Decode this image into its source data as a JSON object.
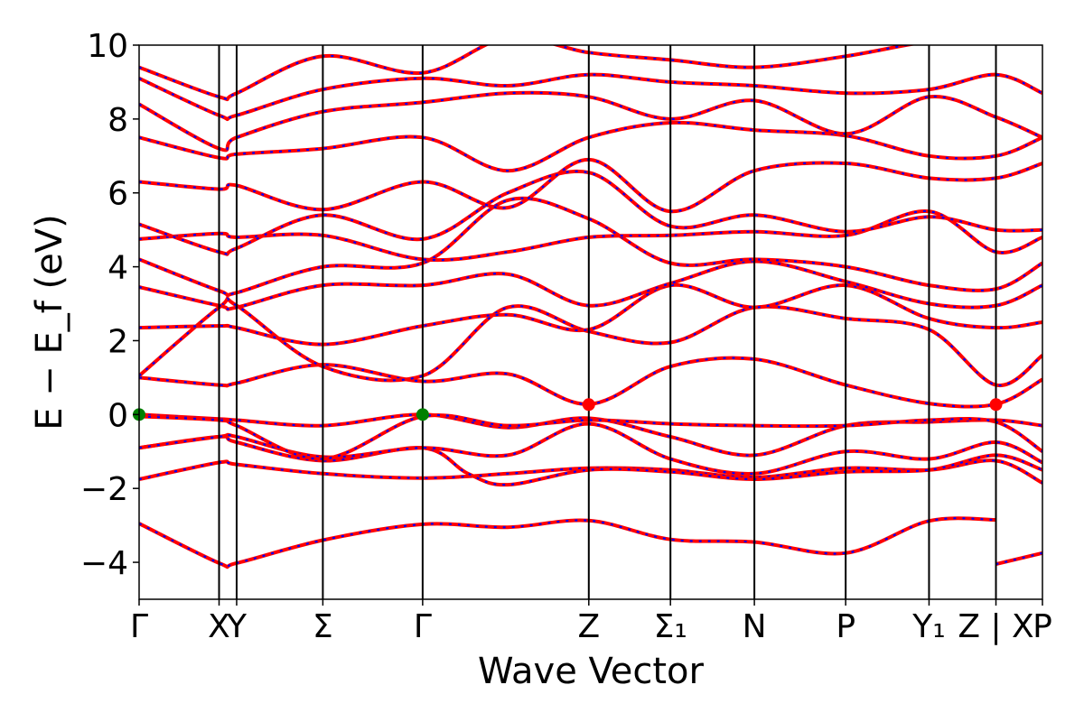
{
  "chart_data": {
    "type": "line",
    "xlabel": "Wave Vector",
    "ylabel": "E − E_f (eV)",
    "ylim": [
      -5,
      10
    ],
    "yticks": [
      -4,
      -2,
      0,
      2,
      4,
      6,
      8,
      10
    ],
    "grid": false,
    "kpoint_labels": [
      {
        "label": "Γ",
        "k": 0.0
      },
      {
        "label": "X",
        "k": 0.141
      },
      {
        "label": "Y",
        "k": 0.172
      },
      {
        "label": "Σ",
        "k": 0.324
      },
      {
        "label": "Γ",
        "k": 0.5
      },
      {
        "label": "Z",
        "k": 0.793
      },
      {
        "label": "Σ₁",
        "k": 0.937
      },
      {
        "label": "N",
        "k": 1.085
      },
      {
        "label": "P",
        "k": 1.246
      },
      {
        "label": "Y₁",
        "k": 1.393
      },
      {
        "label": "Z | X",
        "k": 1.511
      },
      {
        "label": "P",
        "k": 1.593
      }
    ],
    "xlim": [
      0,
      1.593
    ],
    "band_colors": {
      "primary": "#ff0000",
      "overlay": "#0000ff"
    },
    "markers": [
      {
        "k": 0.0,
        "e": 0.0,
        "color": "#008000"
      },
      {
        "k": 0.5,
        "e": 0.0,
        "color": "#008000"
      },
      {
        "k": 0.793,
        "e": 0.27,
        "color": "#ff0000"
      },
      {
        "k": 1.511,
        "e": 0.27,
        "color": "#ff0000"
      }
    ],
    "bands": [
      {
        "name": "",
        "k": [
          0,
          0.141,
          0.172,
          0.324,
          0.5,
          0.65,
          0.793,
          0.937,
          1.085,
          1.246,
          1.393,
          1.511
        ],
        "e": [
          -2.95,
          -4.02,
          -4.02,
          -3.4,
          -2.97,
          -3.05,
          -2.87,
          -3.38,
          -3.45,
          -3.75,
          -2.88,
          -2.85
        ]
      },
      {
        "name": "",
        "k": [
          1.511,
          1.593
        ],
        "e": [
          -4.05,
          -3.75
        ]
      },
      {
        "name": "",
        "k": [
          0,
          0.141,
          0.172,
          0.324,
          0.5,
          0.65,
          0.793,
          0.937,
          1.085,
          1.246,
          1.393,
          1.511,
          1.593
        ],
        "e": [
          -1.75,
          -1.3,
          -1.35,
          -1.6,
          -1.72,
          -1.6,
          -1.45,
          -1.5,
          -1.7,
          -1.45,
          -1.5,
          -1.25,
          -1.85
        ]
      },
      {
        "name": "",
        "k": [
          0,
          0.141,
          0.172,
          0.324,
          0.5,
          0.58,
          0.65,
          0.793,
          0.937,
          1.085,
          1.246,
          1.393,
          1.511,
          1.593
        ],
        "e": [
          -0.9,
          -0.6,
          -0.75,
          -1.25,
          -0.9,
          -1.6,
          -1.9,
          -1.5,
          -1.55,
          -1.75,
          -1.55,
          -1.5,
          -1.1,
          -1.5
        ]
      },
      {
        "name": "",
        "k": [
          0,
          0.141,
          0.172,
          0.324,
          0.5,
          0.65,
          0.793,
          0.937,
          1.085,
          1.246,
          1.393,
          1.511,
          1.593
        ],
        "e": [
          -0.9,
          -0.6,
          -0.6,
          -1.15,
          -0.9,
          -1.1,
          -0.25,
          -1.2,
          -1.6,
          -1.0,
          -1.2,
          -0.75,
          -1.3
        ]
      },
      {
        "name": "",
        "k": [
          0,
          0.141,
          0.172,
          0.324,
          0.5,
          0.65,
          0.793,
          0.937,
          1.085,
          1.246,
          1.393,
          1.511,
          1.593
        ],
        "e": [
          0.0,
          -0.12,
          -0.15,
          -0.3,
          0.0,
          -0.35,
          -0.1,
          -0.6,
          -1.1,
          -0.3,
          -0.2,
          -0.15,
          -0.3
        ]
      },
      {
        "name": "",
        "k": [
          0,
          0.141,
          0.172,
          0.324,
          0.5,
          0.65,
          0.793,
          0.937,
          1.085,
          1.246,
          1.393,
          1.511,
          1.593
        ],
        "e": [
          -0.05,
          -0.15,
          -0.3,
          -1.2,
          -0.05,
          -0.3,
          -0.15,
          -0.25,
          -0.3,
          -0.3,
          -0.15,
          -0.2,
          -1.0
        ]
      },
      {
        "name": "",
        "k": [
          0,
          0.141,
          0.172,
          0.324,
          0.5,
          0.65,
          0.793,
          0.937,
          1.085,
          1.246,
          1.393,
          1.511,
          1.593
        ],
        "e": [
          1.0,
          0.8,
          0.85,
          1.35,
          0.9,
          1.1,
          0.28,
          1.3,
          1.5,
          0.8,
          0.3,
          0.28,
          0.95
        ]
      },
      {
        "name": "",
        "k": [
          0,
          0.141,
          0.172,
          0.324,
          0.5,
          0.65,
          0.793,
          0.937,
          1.085,
          1.246,
          1.393,
          1.511,
          1.593
        ],
        "e": [
          1.05,
          2.9,
          2.95,
          1.3,
          1.05,
          2.9,
          2.25,
          1.95,
          2.9,
          2.6,
          2.3,
          0.8,
          1.6
        ]
      },
      {
        "name": "",
        "k": [
          0,
          0.141,
          0.172,
          0.324,
          0.5,
          0.65,
          0.793,
          0.937,
          1.085,
          1.246,
          1.393,
          1.511,
          1.593
        ],
        "e": [
          2.35,
          2.4,
          2.35,
          1.9,
          2.4,
          2.7,
          2.3,
          3.5,
          2.9,
          3.5,
          2.6,
          2.35,
          2.5
        ]
      },
      {
        "name": "",
        "k": [
          0,
          0.141,
          0.172,
          0.324,
          0.5,
          0.65,
          0.793,
          0.937,
          1.085,
          1.246,
          1.393,
          1.511,
          1.593
        ],
        "e": [
          3.45,
          2.95,
          2.9,
          3.5,
          3.5,
          3.8,
          2.95,
          3.55,
          4.15,
          3.6,
          3.0,
          2.95,
          3.5
        ]
      },
      {
        "name": "",
        "k": [
          0,
          0.141,
          0.172,
          0.324,
          0.5,
          0.65,
          0.793,
          0.937,
          1.085,
          1.246,
          1.393,
          1.511,
          1.593
        ],
        "e": [
          4.2,
          3.35,
          3.3,
          4.0,
          4.1,
          5.8,
          5.3,
          4.1,
          4.2,
          4.0,
          3.5,
          3.4,
          4.1
        ]
      },
      {
        "name": "",
        "k": [
          0,
          0.141,
          0.172,
          0.324,
          0.5,
          0.65,
          0.793,
          0.937,
          1.085,
          1.246,
          1.393,
          1.511,
          1.593
        ],
        "e": [
          4.75,
          4.9,
          4.8,
          4.85,
          4.2,
          4.4,
          4.8,
          4.85,
          4.95,
          4.85,
          5.5,
          4.4,
          4.8
        ]
      },
      {
        "name": "",
        "k": [
          0,
          0.141,
          0.172,
          0.324,
          0.5,
          0.65,
          0.793,
          0.937,
          1.085,
          1.246,
          1.393,
          1.511,
          1.593
        ],
        "e": [
          5.15,
          4.4,
          4.5,
          5.4,
          4.75,
          6.0,
          6.55,
          5.1,
          5.4,
          4.95,
          5.35,
          5.0,
          5.0
        ]
      },
      {
        "name": "",
        "k": [
          0,
          0.141,
          0.172,
          0.324,
          0.5,
          0.65,
          0.793,
          0.937,
          1.085,
          1.246,
          1.393,
          1.511,
          1.593
        ],
        "e": [
          6.3,
          6.1,
          6.2,
          5.55,
          6.3,
          5.6,
          6.9,
          5.5,
          6.6,
          6.8,
          6.4,
          6.4,
          6.8
        ]
      },
      {
        "name": "",
        "k": [
          0,
          0.141,
          0.172,
          0.324,
          0.5,
          0.65,
          0.793,
          0.937,
          1.085,
          1.246,
          1.393,
          1.511,
          1.593
        ],
        "e": [
          7.5,
          6.95,
          7.05,
          7.2,
          7.5,
          6.6,
          7.5,
          7.9,
          7.7,
          7.55,
          7.0,
          7.0,
          7.5
        ]
      },
      {
        "name": "",
        "k": [
          0,
          0.141,
          0.172,
          0.324,
          0.5,
          0.65,
          0.793,
          0.937,
          1.085,
          1.246,
          1.393,
          1.511,
          1.593
        ],
        "e": [
          8.4,
          7.2,
          7.5,
          8.2,
          8.45,
          8.7,
          8.6,
          8.0,
          8.5,
          7.6,
          8.6,
          8.05,
          7.5
        ]
      },
      {
        "name": "",
        "k": [
          0,
          0.141,
          0.172,
          0.324,
          0.5,
          0.65,
          0.793,
          0.937,
          1.085,
          1.246,
          1.393,
          1.511,
          1.593
        ],
        "e": [
          9.1,
          8.1,
          8.1,
          8.8,
          9.1,
          8.9,
          9.2,
          9.0,
          8.9,
          8.7,
          8.8,
          9.2,
          8.7
        ]
      },
      {
        "name": "",
        "k": [
          0,
          0.141,
          0.172,
          0.324,
          0.5,
          0.65,
          0.793,
          0.937,
          1.085,
          1.246,
          1.393,
          1.511,
          1.593
        ],
        "e": [
          9.4,
          8.6,
          8.7,
          9.7,
          9.25,
          10.2,
          9.8,
          9.6,
          9.4,
          9.7,
          10.1,
          10.2,
          10.3
        ]
      }
    ]
  }
}
